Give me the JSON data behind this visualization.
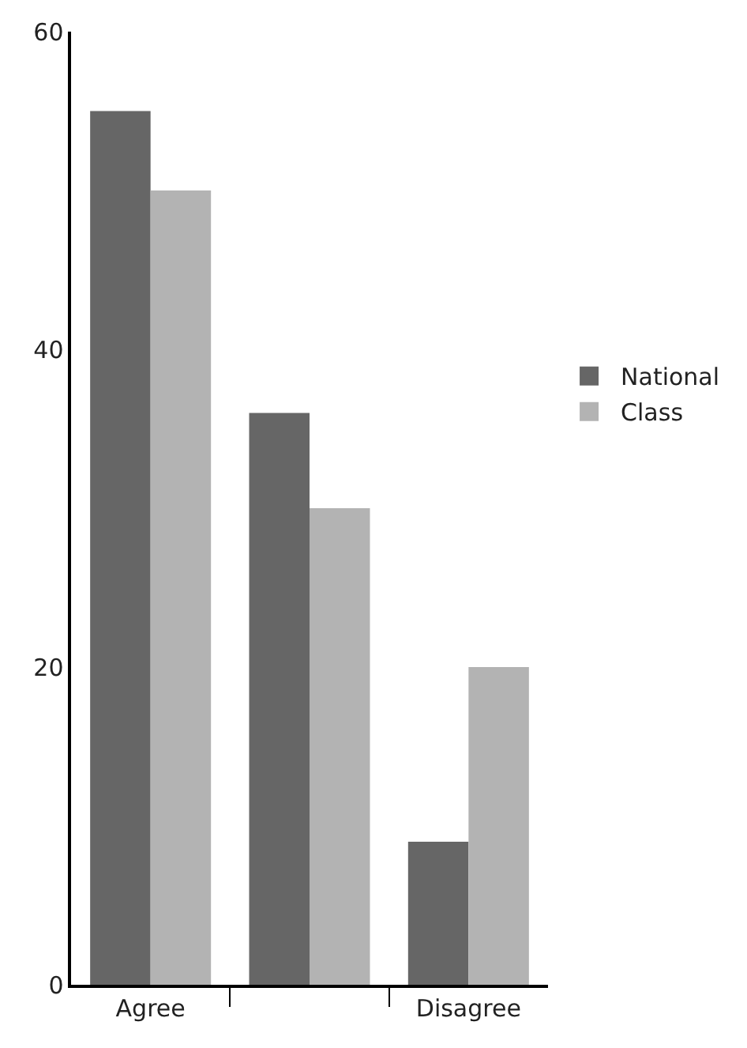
{
  "chart_data": {
    "type": "bar",
    "categories": [
      "Agree",
      null,
      "Disagree"
    ],
    "series": [
      {
        "name": "National",
        "color": "#666666",
        "values": [
          55,
          36,
          9
        ]
      },
      {
        "name": "Class",
        "color": "#b3b3b3",
        "values": [
          50,
          30,
          20
        ]
      }
    ],
    "ylim": [
      0,
      60
    ],
    "yticks": [
      0,
      20,
      40,
      60
    ],
    "legend": "right"
  }
}
